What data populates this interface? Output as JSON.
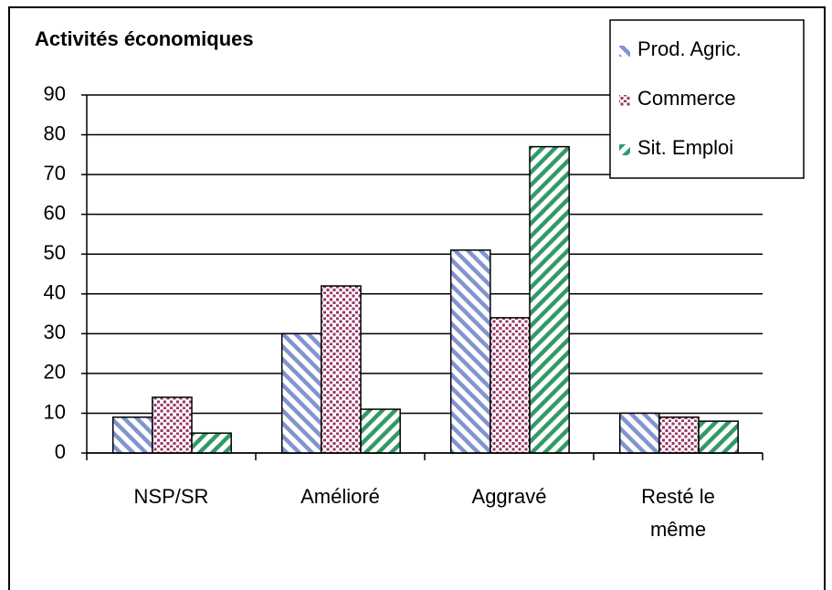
{
  "chart_data": {
    "type": "bar",
    "title": "Activités économiques",
    "categories": [
      "NSP/SR",
      "Amélioré",
      "Aggravé",
      "Resté le même"
    ],
    "series": [
      {
        "name": "Prod. Agric.",
        "color": "#8094d0",
        "values": [
          9,
          30,
          51,
          10
        ]
      },
      {
        "name": "Commerce",
        "color": "#993366",
        "values": [
          14,
          42,
          34,
          9
        ]
      },
      {
        "name": "Sit. Emploi",
        "color": "#339966",
        "values": [
          5,
          11,
          77,
          8
        ]
      }
    ],
    "ylim": [
      0,
      90
    ],
    "yticks": [
      0,
      10,
      20,
      30,
      40,
      50,
      60,
      70,
      80,
      90
    ],
    "grid": true,
    "legend": "top-right"
  }
}
